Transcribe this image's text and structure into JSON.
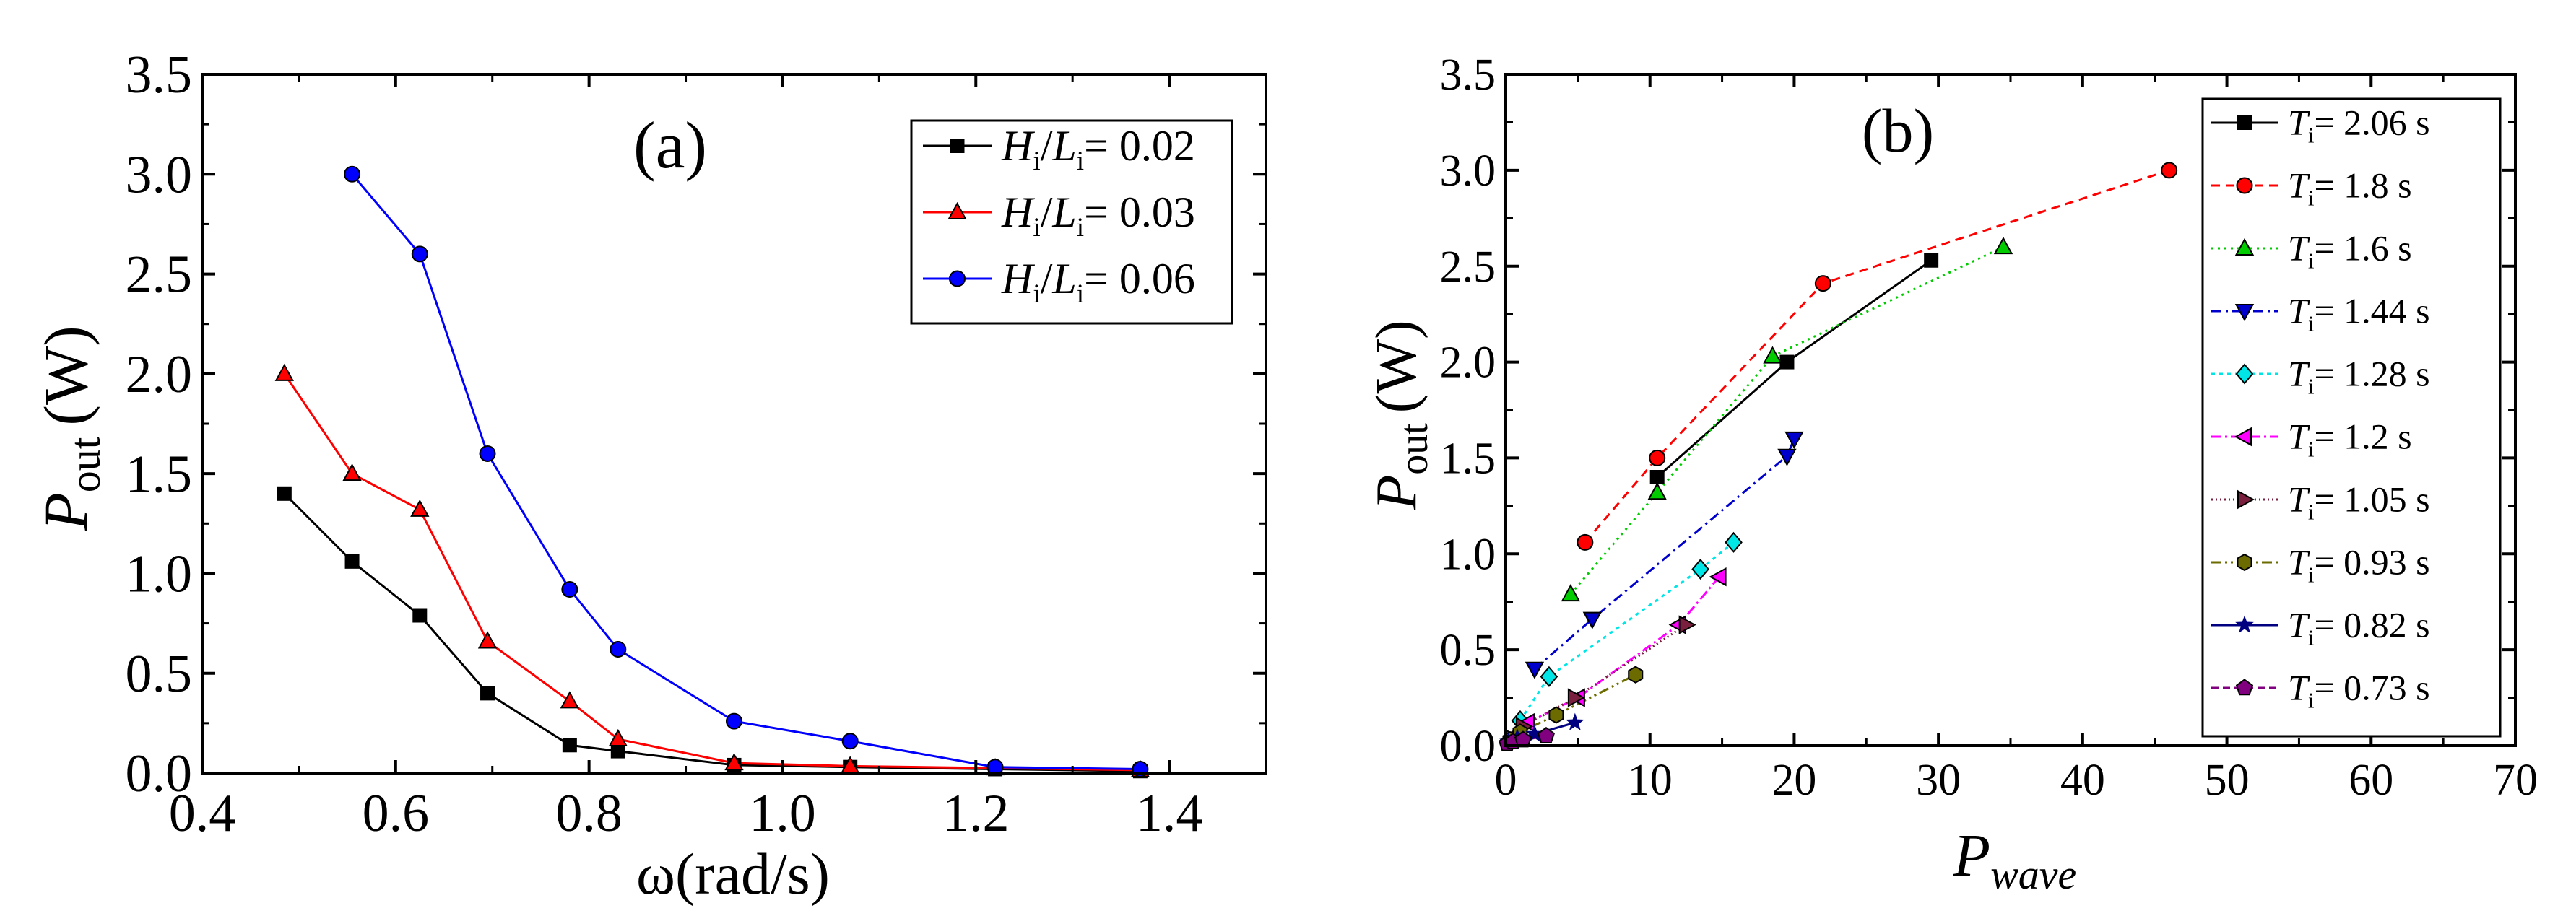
{
  "chart_data": [
    {
      "type": "line",
      "panel_label": "(a)",
      "xlabel": "ω(rad/s)",
      "ylabel_main": "P",
      "ylabel_sub": "out",
      "ylabel_unit": "(W)",
      "xlim": [
        0.4,
        1.5
      ],
      "ylim": [
        0,
        3.5
      ],
      "xticks": [
        0.4,
        0.6,
        0.8,
        1.0,
        1.2,
        1.4
      ],
      "yticks": [
        0.0,
        0.5,
        1.0,
        1.5,
        2.0,
        2.5,
        3.0,
        3.5
      ],
      "xtick_labels": [
        "0.4",
        "0.6",
        "0.8",
        "1.0",
        "1.2",
        "1.4"
      ],
      "ytick_labels": [
        "0.0",
        "0.5",
        "1.0",
        "1.5",
        "2.0",
        "2.5",
        "3.0",
        "3.5"
      ],
      "legend_position": "top-right",
      "series": [
        {
          "name": "Hi/Li=0.02",
          "label_H": "H",
          "label_i": "i",
          "label_L": "L",
          "label_value": "= 0.02",
          "color": "#000000",
          "marker": "square",
          "dash": "",
          "x": [
            0.485,
            0.555,
            0.625,
            0.695,
            0.78,
            0.83,
            0.95,
            1.07,
            1.22,
            1.37
          ],
          "y": [
            1.4,
            1.06,
            0.79,
            0.4,
            0.14,
            0.11,
            0.04,
            0.03,
            0.02,
            0.01
          ]
        },
        {
          "name": "Hi/Li=0.03",
          "label_H": "H",
          "label_i": "i",
          "label_L": "L",
          "label_value": "= 0.03",
          "color": "#ff0000",
          "marker": "triangle-up",
          "dash": "",
          "x": [
            0.485,
            0.555,
            0.625,
            0.695,
            0.78,
            0.83,
            0.95,
            1.07,
            1.22,
            1.37
          ],
          "y": [
            2.0,
            1.5,
            1.32,
            0.66,
            0.36,
            0.17,
            0.05,
            0.035,
            0.025,
            0.015
          ]
        },
        {
          "name": "Hi/Li=0.06",
          "label_H": "H",
          "label_i": "i",
          "label_L": "L",
          "label_value": "= 0.06",
          "color": "#0000ff",
          "marker": "circle",
          "dash": "",
          "x": [
            0.555,
            0.625,
            0.695,
            0.78,
            0.83,
            0.95,
            1.07,
            1.22,
            1.37
          ],
          "y": [
            3.0,
            2.6,
            1.6,
            0.92,
            0.62,
            0.26,
            0.16,
            0.03,
            0.02
          ]
        }
      ]
    },
    {
      "type": "line",
      "panel_label": "(b)",
      "xlabel_main": "P",
      "xlabel_sub": "wave",
      "ylabel_main": "P",
      "ylabel_sub": "out",
      "ylabel_unit": "(W)",
      "xlim": [
        0,
        70
      ],
      "ylim": [
        0,
        3.5
      ],
      "xticks": [
        0,
        10,
        20,
        30,
        40,
        50,
        60,
        70
      ],
      "yticks": [
        0.0,
        0.5,
        1.0,
        1.5,
        2.0,
        2.5,
        3.0,
        3.5
      ],
      "xtick_labels": [
        "0",
        "10",
        "20",
        "30",
        "40",
        "50",
        "60",
        "70"
      ],
      "ytick_labels": [
        "0.0",
        "0.5",
        "1.0",
        "1.5",
        "2.0",
        "2.5",
        "3.0",
        "3.5"
      ],
      "legend_position": "top-right",
      "series": [
        {
          "name": "Ti= 2.06 s",
          "label_T": "T",
          "label_i": "i",
          "label_value": "= 2.06 s",
          "color": "#000000",
          "marker": "square",
          "dash": "",
          "x": [
            10.5,
            19.5,
            29.5
          ],
          "y": [
            1.4,
            2.0,
            2.53
          ]
        },
        {
          "name": "Ti= 1.8 s",
          "label_T": "T",
          "label_i": "i",
          "label_value": "= 1.8 s",
          "color": "#ff0000",
          "marker": "circle",
          "dash": "12,8",
          "x": [
            5.5,
            10.5,
            22.0,
            46.0
          ],
          "y": [
            1.06,
            1.5,
            2.41,
            3.0
          ]
        },
        {
          "name": "Ti= 1.6 s",
          "label_T": "T",
          "label_i": "i",
          "label_value": "= 1.6 s",
          "color": "#00cc00",
          "marker": "triangle-up",
          "dash": "3,6",
          "x": [
            4.5,
            10.5,
            18.5,
            34.5
          ],
          "y": [
            0.79,
            1.32,
            2.03,
            2.6
          ]
        },
        {
          "name": "Ti= 1.44 s",
          "label_T": "T",
          "label_i": "i",
          "label_value": "= 1.44 s",
          "color": "#0000cc",
          "marker": "triangle-down",
          "dash": "14,6,3,6",
          "x": [
            2.0,
            6.0,
            19.5,
            20.0
          ],
          "y": [
            0.4,
            0.66,
            1.51,
            1.6
          ]
        },
        {
          "name": "Ti= 1.28 s",
          "label_T": "T",
          "label_i": "i",
          "label_value": "= 1.28 s",
          "color": "#00e5e5",
          "marker": "diamond",
          "dash": "5,6",
          "x": [
            1.0,
            3.0,
            13.5,
            15.8
          ],
          "y": [
            0.13,
            0.36,
            0.92,
            1.06
          ]
        },
        {
          "name": "Ti= 1.2 s",
          "label_T": "T",
          "label_i": "i",
          "label_value": "= 1.2 s",
          "color": "#ff00ff",
          "marker": "triangle-left",
          "dash": "14,5,3,5",
          "x": [
            0.5,
            1.5,
            5.0,
            12.0,
            14.8
          ],
          "y": [
            0.05,
            0.12,
            0.25,
            0.63,
            0.88
          ]
        },
        {
          "name": "Ti= 1.05 s",
          "label_T": "T",
          "label_i": "i",
          "label_value": "= 1.05 s",
          "color": "#7a1f3d",
          "marker": "triangle-right",
          "dash": "2,4",
          "x": [
            0.4,
            1.2,
            4.8,
            12.5
          ],
          "y": [
            0.04,
            0.1,
            0.25,
            0.63
          ]
        },
        {
          "name": "Ti= 0.93 s",
          "label_T": "T",
          "label_i": "i",
          "label_value": "= 0.93 s",
          "color": "#6b6b00",
          "marker": "hexagon",
          "dash": "14,5,3,5,3,5",
          "x": [
            0.3,
            1.0,
            3.5,
            9.0
          ],
          "y": [
            0.03,
            0.07,
            0.16,
            0.37
          ]
        },
        {
          "name": "Ti= 0.82 s",
          "label_T": "T",
          "label_i": "i",
          "label_value": "= 0.82 s",
          "color": "#000080",
          "marker": "star",
          "dash": "",
          "x": [
            0.2,
            0.8,
            2.0,
            4.8
          ],
          "y": [
            0.02,
            0.04,
            0.06,
            0.12
          ]
        },
        {
          "name": "Ti= 0.73 s",
          "label_T": "T",
          "label_i": "i",
          "label_value": "= 0.73 s",
          "color": "#800080",
          "marker": "pentagon",
          "dash": "10,6",
          "x": [
            0.1,
            0.5,
            1.2,
            2.8
          ],
          "y": [
            0.01,
            0.02,
            0.03,
            0.05
          ]
        }
      ]
    }
  ]
}
